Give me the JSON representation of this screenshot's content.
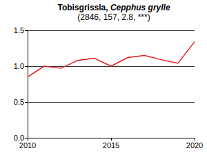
{
  "chart_data": {
    "type": "line",
    "title": "Tobisgrissla, Cepphus grylle",
    "subtitle": "(2846, 157, 2.8, ***)",
    "x": [
      2010,
      2011,
      2012,
      2013,
      2014,
      2015,
      2016,
      2017,
      2018,
      2019,
      2020
    ],
    "values": [
      0.85,
      1.0,
      0.97,
      1.08,
      1.11,
      1.0,
      1.12,
      1.15,
      1.09,
      1.04,
      1.34
    ],
    "color": "#e41a1c",
    "xlim": [
      2010,
      2020
    ],
    "xticks": [
      2010,
      2015,
      2020
    ],
    "ylim": [
      0,
      1.5
    ],
    "yticks": [
      {
        "value": 0,
        "label": "0.0"
      },
      {
        "value": 0.5,
        "label": "0.5"
      },
      {
        "value": 1,
        "label": "1.0"
      },
      {
        "value": 1.5,
        "label": "1.5"
      }
    ],
    "grid": true
  }
}
